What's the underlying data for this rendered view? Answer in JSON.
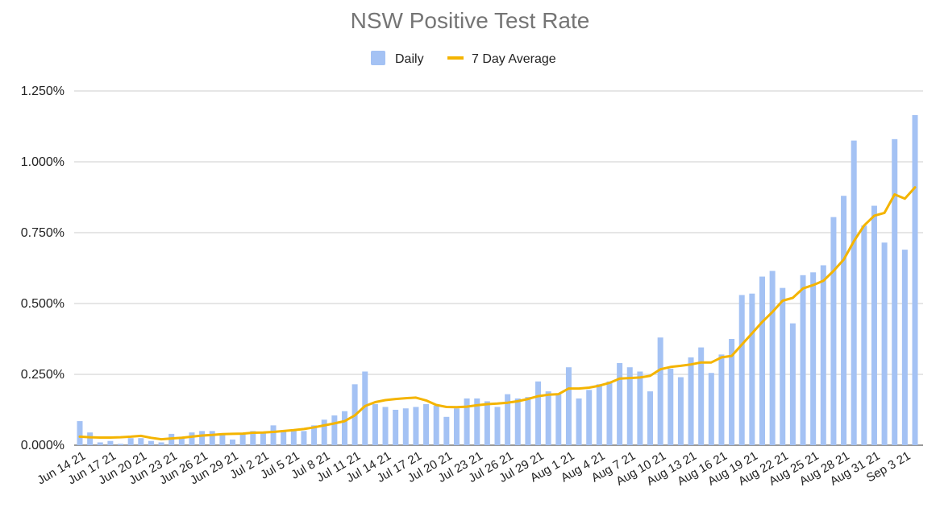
{
  "chart_data": {
    "type": "bar",
    "title": "NSW Positive Test Rate",
    "xlabel": "",
    "ylabel": "",
    "ylim": [
      0,
      1.25
    ],
    "yticks": [
      "0.000%",
      "0.250%",
      "0.500%",
      "0.750%",
      "1.000%",
      "1.250%"
    ],
    "ytick_values": [
      0,
      0.25,
      0.5,
      0.75,
      1.0,
      1.25
    ],
    "xtick_labels": [
      "Jun 14 21",
      "Jun 17 21",
      "Jun 20 21",
      "Jun 23 21",
      "Jun 26 21",
      "Jun 29 21",
      "Jul 2 21",
      "Jul 5 21",
      "Jul 8 21",
      "Jul 11 21",
      "Jul 14 21",
      "Jul 17 21",
      "Jul 20 21",
      "Jul 23 21",
      "Jul 26 21",
      "Jul 29 21",
      "Aug 1 21",
      "Aug 4 21",
      "Aug 7 21",
      "Aug 10 21",
      "Aug 13 21",
      "Aug 16 21",
      "Aug 19 21",
      "Aug 22 21",
      "Aug 25 21",
      "Aug 28 21",
      "Aug 31 21",
      "Sep 3 21"
    ],
    "xtick_every": 3,
    "legend_position": "top",
    "grid": true,
    "colors": {
      "daily": "#a4c2f4",
      "avg": "#f4b400"
    },
    "series": [
      {
        "name": "Daily",
        "type": "bar",
        "values": [
          0.085,
          0.045,
          0.01,
          0.015,
          0.005,
          0.025,
          0.025,
          0.015,
          0.01,
          0.04,
          0.025,
          0.045,
          0.05,
          0.05,
          0.04,
          0.02,
          0.04,
          0.05,
          0.045,
          0.07,
          0.05,
          0.05,
          0.05,
          0.07,
          0.09,
          0.105,
          0.12,
          0.215,
          0.26,
          0.145,
          0.135,
          0.125,
          0.13,
          0.135,
          0.145,
          0.14,
          0.1,
          0.13,
          0.165,
          0.165,
          0.155,
          0.135,
          0.18,
          0.165,
          0.17,
          0.225,
          0.19,
          0.18,
          0.275,
          0.165,
          0.195,
          0.215,
          0.225,
          0.29,
          0.275,
          0.26,
          0.19,
          0.38,
          0.27,
          0.24,
          0.31,
          0.345,
          0.255,
          0.32,
          0.375,
          0.53,
          0.535,
          0.595,
          0.615,
          0.555,
          0.43,
          0.6,
          0.61,
          0.635,
          0.805,
          0.88,
          1.075,
          0.775,
          0.845,
          0.715,
          1.08,
          0.69,
          1.165
        ]
      },
      {
        "name": "7 Day Average",
        "type": "line",
        "values": [
          0.03,
          0.028,
          0.027,
          0.027,
          0.028,
          0.03,
          0.033,
          0.026,
          0.021,
          0.024,
          0.026,
          0.03,
          0.034,
          0.036,
          0.039,
          0.04,
          0.041,
          0.044,
          0.045,
          0.047,
          0.05,
          0.053,
          0.057,
          0.063,
          0.07,
          0.077,
          0.085,
          0.105,
          0.138,
          0.152,
          0.159,
          0.163,
          0.166,
          0.168,
          0.158,
          0.142,
          0.135,
          0.134,
          0.136,
          0.141,
          0.145,
          0.147,
          0.15,
          0.155,
          0.163,
          0.173,
          0.178,
          0.18,
          0.2,
          0.2,
          0.203,
          0.21,
          0.22,
          0.235,
          0.237,
          0.239,
          0.245,
          0.268,
          0.276,
          0.28,
          0.285,
          0.292,
          0.292,
          0.31,
          0.315,
          0.355,
          0.395,
          0.435,
          0.47,
          0.51,
          0.52,
          0.553,
          0.565,
          0.58,
          0.615,
          0.655,
          0.72,
          0.775,
          0.81,
          0.82,
          0.885,
          0.87,
          0.91
        ]
      }
    ]
  }
}
